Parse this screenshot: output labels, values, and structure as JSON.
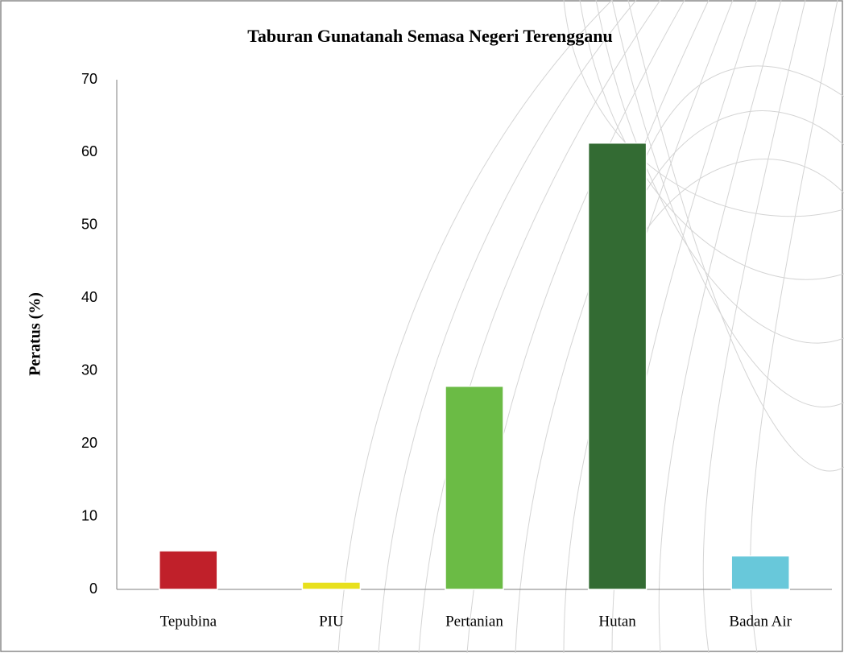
{
  "chart_data": {
    "type": "bar",
    "title": "Taburan Gunatanah Semasa Negeri Terengganu",
    "y_label": "Peratus (%)",
    "categories": [
      "Tepubina",
      "PIU",
      "Pertanian",
      "Hutan",
      "Badan Air"
    ],
    "values": [
      5.3,
      1.0,
      27.9,
      61.3,
      4.6
    ],
    "colors": [
      "#c0202a",
      "#e8e01c",
      "#6bbb45",
      "#336b33",
      "#68c8da"
    ],
    "ylim": [
      0,
      70
    ],
    "yticks": [
      0,
      10,
      20,
      30,
      40,
      50,
      60,
      70
    ],
    "grid": false
  }
}
